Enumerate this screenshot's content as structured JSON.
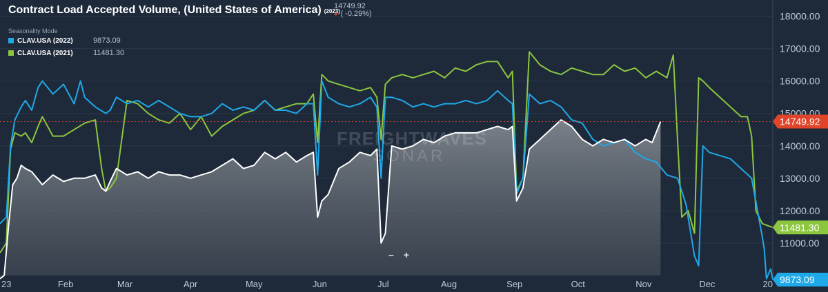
{
  "header": {
    "title": "Contract Load Accepted Volume, (United States of America)",
    "title_year": "(2023)",
    "last_value": "14749.92",
    "last_change": "( -0.29%)",
    "seasonality_label": "Seasonality Mode"
  },
  "legend": [
    {
      "name": "CLAV.USA (2022)",
      "value": "9873.09",
      "color": "#1fa9e9"
    },
    {
      "name": "CLAV.USA (2021)",
      "value": "11481.30",
      "color": "#8cc63f"
    }
  ],
  "watermark": {
    "line1": "FREIGHTWAVES",
    "line2": "SONAR"
  },
  "zoom": {
    "minus": "–",
    "plus": "+"
  },
  "colors": {
    "background": "#1e2a3a",
    "current": "#ffffff",
    "y2022": "#1fa9e9",
    "y2021": "#8cc63f",
    "last_marker": "#e0452a"
  },
  "chart_data": {
    "type": "line",
    "ylim": [
      10000,
      18500
    ],
    "y_ticks": [
      "11000.00",
      "12000.00",
      "13000.00",
      "14000.00",
      "15000.00",
      "16000.00",
      "17000.00",
      "18000.00"
    ],
    "x_ticks": [
      "23",
      "Feb",
      "Mar",
      "Apr",
      "May",
      "Jun",
      "Jul",
      "Aug",
      "Sep",
      "Oct",
      "Nov",
      "Dec",
      "20"
    ],
    "x_tick_days": [
      0,
      31,
      59,
      90,
      120,
      151,
      181,
      212,
      243,
      273,
      304,
      334,
      365
    ],
    "reference_line": {
      "value": 14749.92,
      "label": "14749.92"
    },
    "end_labels": [
      {
        "series": "CLAV.USA (2022)",
        "value": 9873.09,
        "label": "9873.09"
      },
      {
        "series": "CLAV.USA (2021)",
        "value": 11481.3,
        "label": "11481.30"
      }
    ],
    "series": [
      {
        "name": "2023",
        "style": "area",
        "x": [
          0,
          2,
          4,
          6,
          8,
          10,
          12,
          15,
          20,
          25,
          30,
          35,
          40,
          45,
          48,
          50,
          52,
          55,
          60,
          65,
          70,
          75,
          80,
          85,
          90,
          95,
          100,
          105,
          110,
          115,
          120,
          125,
          130,
          135,
          140,
          145,
          148,
          150,
          152,
          155,
          160,
          165,
          170,
          175,
          178,
          180,
          182,
          185,
          190,
          195,
          200,
          205,
          210,
          215,
          220,
          225,
          230,
          235,
          240,
          242,
          244,
          247,
          250,
          255,
          260,
          265,
          270,
          275,
          280,
          285,
          290,
          295,
          300,
          305,
          308,
          312
        ],
        "values": [
          9900,
          10000,
          11500,
          12800,
          13000,
          13400,
          13300,
          13200,
          12800,
          13100,
          12900,
          13000,
          13000,
          13100,
          12700,
          12600,
          12900,
          13300,
          13100,
          13200,
          13000,
          13200,
          13100,
          13100,
          13000,
          13100,
          13200,
          13400,
          13600,
          13300,
          13400,
          13800,
          13600,
          13800,
          13500,
          13700,
          13800,
          11800,
          12300,
          12500,
          13300,
          13500,
          13800,
          13700,
          13900,
          11000,
          11300,
          14000,
          13900,
          14000,
          14200,
          14100,
          14300,
          14400,
          14400,
          14400,
          14500,
          14600,
          14500,
          14600,
          12300,
          12700,
          13900,
          14200,
          14500,
          14800,
          14600,
          14200,
          14000,
          14200,
          14100,
          14200,
          14000,
          14200,
          14100,
          14750
        ]
      },
      {
        "name": "CLAV.USA (2022)",
        "x": [
          0,
          3,
          5,
          7,
          10,
          12,
          15,
          18,
          20,
          25,
          30,
          35,
          38,
          40,
          45,
          50,
          52,
          55,
          60,
          65,
          70,
          75,
          80,
          85,
          90,
          95,
          100,
          105,
          110,
          115,
          120,
          125,
          130,
          135,
          140,
          145,
          148,
          150,
          152,
          155,
          160,
          165,
          170,
          175,
          178,
          180,
          182,
          185,
          190,
          195,
          200,
          205,
          210,
          215,
          220,
          225,
          230,
          235,
          240,
          242,
          244,
          247,
          250,
          255,
          260,
          265,
          270,
          275,
          280,
          285,
          290,
          295,
          300,
          305,
          310,
          315,
          320,
          324,
          328,
          330,
          332,
          335,
          340,
          345,
          350,
          355,
          360,
          361,
          362,
          364,
          365
        ],
        "values": [
          11600,
          11800,
          14000,
          14800,
          15200,
          15400,
          15100,
          15800,
          16000,
          15600,
          15900,
          15300,
          16000,
          15500,
          15200,
          15000,
          15100,
          15500,
          15300,
          15400,
          15200,
          15400,
          15200,
          15000,
          14900,
          14900,
          15000,
          15300,
          15100,
          15200,
          15100,
          15400,
          15100,
          15100,
          15000,
          15300,
          15300,
          13100,
          16000,
          15500,
          15300,
          15200,
          15300,
          15500,
          15200,
          13000,
          15500,
          15500,
          15400,
          15200,
          15300,
          15200,
          15300,
          15300,
          15400,
          15300,
          15400,
          15700,
          15400,
          15300,
          12500,
          13000,
          15600,
          15300,
          15400,
          15200,
          14800,
          14700,
          14200,
          14000,
          14100,
          14200,
          13800,
          13600,
          13500,
          13100,
          13000,
          12200,
          10600,
          10300,
          14000,
          13800,
          13700,
          13600,
          13300,
          13000,
          11200,
          10800,
          9900,
          10200,
          9873
        ]
      },
      {
        "name": "CLAV.USA (2021)",
        "x": [
          0,
          3,
          5,
          7,
          10,
          12,
          15,
          18,
          20,
          25,
          30,
          35,
          40,
          45,
          48,
          50,
          52,
          55,
          60,
          65,
          70,
          75,
          80,
          85,
          90,
          95,
          100,
          105,
          110,
          115,
          120,
          125,
          130,
          135,
          140,
          145,
          148,
          150,
          152,
          155,
          160,
          165,
          170,
          175,
          178,
          180,
          182,
          185,
          190,
          195,
          200,
          205,
          210,
          215,
          220,
          225,
          230,
          235,
          240,
          242,
          244,
          247,
          250,
          255,
          260,
          265,
          270,
          275,
          280,
          285,
          290,
          295,
          300,
          305,
          310,
          315,
          318,
          320,
          322,
          325,
          328,
          330,
          332,
          335,
          340,
          345,
          350,
          353,
          355,
          357,
          360,
          365
        ],
        "values": [
          10700,
          11000,
          13900,
          14400,
          14300,
          14400,
          14100,
          14600,
          14900,
          14300,
          14300,
          14500,
          14700,
          14800,
          13300,
          12600,
          12700,
          13000,
          15400,
          15300,
          15000,
          14800,
          14700,
          15000,
          14500,
          14900,
          14300,
          14600,
          14800,
          15000,
          15100,
          15400,
          15100,
          15200,
          15300,
          15300,
          15600,
          14100,
          16200,
          16000,
          15900,
          15800,
          15700,
          15800,
          15500,
          14200,
          15900,
          16100,
          16200,
          16100,
          16200,
          16300,
          16100,
          16400,
          16300,
          16500,
          16600,
          16600,
          16100,
          16300,
          12600,
          13000,
          16900,
          16500,
          16300,
          16200,
          16400,
          16300,
          16200,
          16200,
          16500,
          16300,
          16400,
          16100,
          16300,
          16100,
          16800,
          14200,
          11800,
          12000,
          11300,
          16100,
          16000,
          15800,
          15500,
          15200,
          14900,
          14900,
          14300,
          12000,
          11600,
          11481
        ]
      }
    ]
  }
}
